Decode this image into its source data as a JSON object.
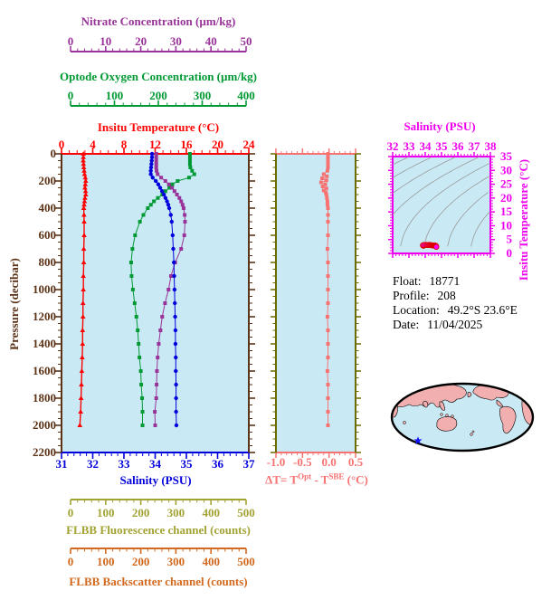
{
  "axes": {
    "nitrate": {
      "title": "Nitrate Concentration (µm/kg)",
      "color": "#993399",
      "min": 0,
      "max": 50,
      "ticks": [
        0,
        10,
        20,
        30,
        40,
        50
      ]
    },
    "oxygen": {
      "title": "Optode Oxygen Concentration (µm/kg)",
      "color": "#009933",
      "min": 0,
      "max": 400,
      "ticks": [
        0,
        100,
        200,
        300,
        400
      ]
    },
    "temperature": {
      "title": "Insitu Temperature (°C)",
      "color": "#ff0000",
      "min": 0,
      "max": 24,
      "ticks": [
        0,
        4,
        8,
        12,
        16,
        20,
        24
      ]
    },
    "salinity": {
      "title": "Salinity (PSU)",
      "color": "#0000dd",
      "min": 31,
      "max": 37,
      "ticks": [
        31,
        32,
        33,
        34,
        35,
        36,
        37
      ]
    },
    "pressure": {
      "title": "Pressure (decibar)",
      "color": "#5c3317",
      "min": 0,
      "max": 2200,
      "ticks": [
        0,
        200,
        400,
        600,
        800,
        1000,
        1200,
        1400,
        1600,
        1800,
        2000,
        2200
      ]
    },
    "fluorescence": {
      "title": "FLBB Fluorescence channel (counts)",
      "color": "#a3a334",
      "min": 0,
      "max": 500,
      "ticks": [
        0,
        100,
        200,
        300,
        400,
        500
      ]
    },
    "backscatter": {
      "title": "FLBB Backscatter channel (counts)",
      "color": "#d2691e",
      "min": 0,
      "max": 500,
      "ticks": [
        0,
        100,
        200,
        300,
        400,
        500
      ]
    },
    "delta": {
      "color": "#f87272",
      "min": -1.0,
      "max": 0.5,
      "tick_labels": [
        "-1.0",
        "-0.5",
        "0.0",
        "0.5"
      ],
      "tick_values": [
        -1.0,
        -0.5,
        0.0,
        0.5
      ],
      "label_parts": {
        "t1": "ΔT= T",
        "sup1": "Opt",
        "t2": " - T",
        "sup2": "SBE",
        "t3": " (°C)"
      }
    },
    "ts": {
      "title": "Salinity (PSU)",
      "ylabel": "Insitu Temperature (°C)",
      "color": "#ee00ee",
      "xmin": 32,
      "xmax": 38,
      "xticks": [
        32,
        33,
        34,
        35,
        36,
        37,
        38
      ],
      "ymin": 0,
      "ymax": 35,
      "yticks": [
        0,
        5,
        10,
        15,
        20,
        25,
        30,
        35
      ]
    }
  },
  "info": {
    "lines": [
      {
        "label": "Float:",
        "value": "18771"
      },
      {
        "label": "Profile:",
        "value": "208"
      },
      {
        "label": "Location:",
        "value": "49.2°S  23.6°E"
      },
      {
        "label": "Date:",
        "value": "11/04/2025"
      }
    ]
  },
  "map": {
    "land_color": "#f2afaf",
    "ocean_color": "#c9e9f4",
    "outline_color": "#000000",
    "marker": "star",
    "marker_color": "#1414ff"
  },
  "plot_background": "#c9eaf5",
  "chart_data": [
    {
      "type": "line",
      "title": "Vertical profiles vs pressure",
      "ylabel": "Pressure (decibar)",
      "ylim": [
        0,
        2200
      ],
      "y_inverted": true,
      "grid": false,
      "pressure_db": [
        0,
        25,
        50,
        75,
        100,
        125,
        150,
        175,
        200,
        225,
        250,
        275,
        300,
        325,
        350,
        375,
        400,
        450,
        500,
        600,
        700,
        800,
        900,
        1000,
        1100,
        1200,
        1300,
        1400,
        1500,
        1600,
        1700,
        1800,
        1900,
        2000
      ],
      "series": [
        {
          "name": "Insitu Temperature (°C)",
          "color": "#ff0000",
          "marker": "triangle",
          "xlim": [
            0,
            24
          ],
          "values": [
            2.8,
            2.8,
            2.78,
            2.82,
            2.85,
            2.9,
            2.95,
            3.05,
            3.1,
            3.05,
            3.0,
            3.08,
            3.1,
            3.0,
            2.95,
            2.9,
            2.85,
            2.88,
            2.9,
            2.9,
            2.85,
            2.85,
            2.8,
            2.8,
            2.75,
            2.75,
            2.7,
            2.7,
            2.65,
            2.6,
            2.55,
            2.5,
            2.45,
            2.35
          ]
        },
        {
          "name": "Salinity (PSU)",
          "color": "#0000dd",
          "marker": "circle",
          "xlim": [
            31,
            37
          ],
          "values": [
            33.9,
            33.9,
            33.89,
            33.88,
            33.87,
            33.86,
            33.86,
            33.92,
            34.02,
            34.1,
            34.16,
            34.22,
            34.28,
            34.33,
            34.38,
            34.42,
            34.45,
            34.5,
            34.53,
            34.56,
            34.58,
            34.6,
            34.61,
            34.62,
            34.63,
            34.64,
            34.65,
            34.65,
            34.66,
            34.66,
            34.67,
            34.67,
            34.67,
            34.68
          ]
        },
        {
          "name": "Nitrate Concentration (µm/kg)",
          "color": "#993399",
          "marker": "square",
          "xlim": [
            0,
            50
          ],
          "values": [
            24.4,
            24.4,
            24.4,
            24.4,
            24.4,
            24.5,
            24.8,
            25.8,
            27.0,
            28.0,
            28.9,
            29.6,
            30.3,
            31.0,
            31.5,
            31.9,
            32.2,
            32.5,
            32.6,
            32.4,
            31.5,
            29.8,
            28.6,
            27.9,
            26.9,
            26.1,
            25.6,
            25.1,
            24.8,
            24.6,
            24.5,
            24.4,
            24.0,
            24.1
          ]
        },
        {
          "name": "Optode Oxygen Concentration (µm/kg)",
          "color": "#009933",
          "marker": "square",
          "xlim": [
            0,
            400
          ],
          "values": [
            272,
            272,
            272,
            272,
            273,
            277,
            282,
            270,
            244,
            232,
            225,
            216,
            209,
            199,
            190,
            183,
            176,
            166,
            158,
            147,
            141,
            138,
            139,
            142,
            146,
            150,
            153,
            155,
            157,
            160,
            161,
            163,
            164,
            164
          ]
        }
      ]
    },
    {
      "type": "line",
      "title": "Optode minus SBE temperature difference",
      "xlabel": "ΔT= TOpt - TSBE (°C)",
      "xlim": [
        -1.0,
        0.5
      ],
      "ylabel": "Pressure (decibar)",
      "ylim": [
        0,
        2200
      ],
      "y_inverted": true,
      "color": "#f87272",
      "marker": "square",
      "pressure_db": [
        0,
        25,
        50,
        75,
        100,
        125,
        150,
        165,
        180,
        195,
        210,
        225,
        240,
        255,
        270,
        285,
        300,
        325,
        350,
        375,
        400,
        450,
        500,
        600,
        700,
        800,
        900,
        1000,
        1100,
        1200,
        1300,
        1400,
        1500,
        1600,
        1700,
        1800,
        1900,
        2000
      ],
      "values": [
        -0.02,
        -0.02,
        -0.02,
        -0.02,
        -0.02,
        -0.03,
        -0.1,
        -0.04,
        -0.13,
        -0.05,
        -0.15,
        -0.07,
        -0.12,
        -0.05,
        -0.1,
        -0.06,
        -0.05,
        -0.04,
        -0.03,
        -0.03,
        -0.02,
        -0.02,
        -0.02,
        -0.02,
        -0.03,
        -0.02,
        -0.02,
        -0.02,
        -0.02,
        -0.03,
        -0.02,
        -0.02,
        -0.02,
        -0.03,
        -0.02,
        -0.02,
        -0.02,
        -0.02
      ]
    },
    {
      "type": "scatter",
      "title": "T-S diagram",
      "xlabel": "Salinity (PSU)",
      "xlim": [
        32,
        38
      ],
      "ylabel": "Insitu Temperature (°C)",
      "ylim": [
        0,
        35
      ],
      "color": "#ff00ff",
      "edge_color": "#dd0000",
      "points_source": "salinity vs temperature pairs from chart_data[0]",
      "background": "gray isopycnal-style contour curves"
    }
  ]
}
